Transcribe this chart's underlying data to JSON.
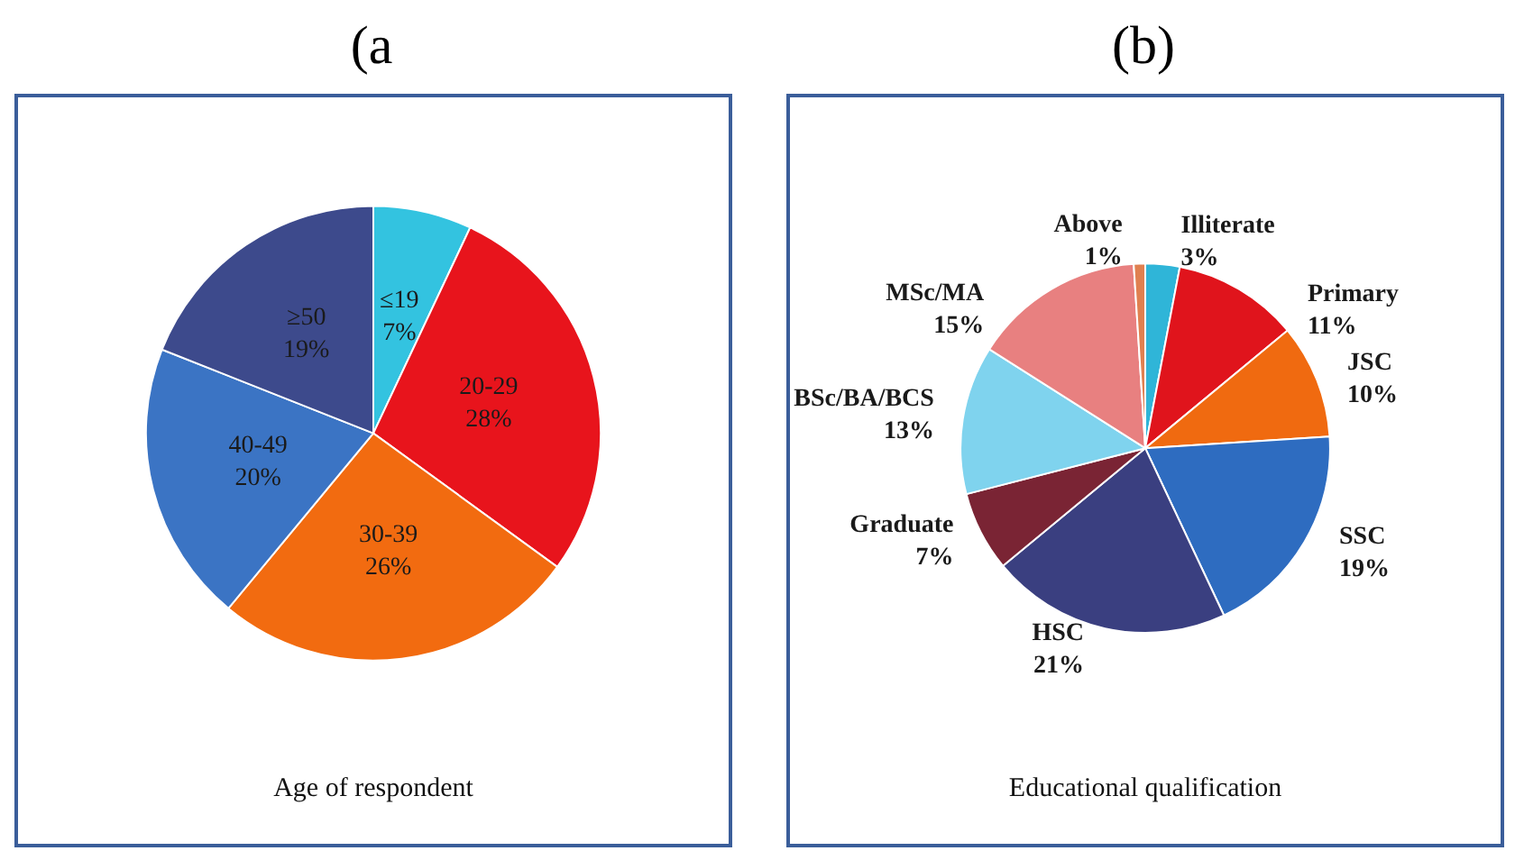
{
  "chart_data": [
    {
      "type": "pie",
      "title": "Age of respondent",
      "annotations": [
        "(a"
      ],
      "categories": [
        "≤19",
        "20-29",
        "30-39",
        "40-49",
        "≥50"
      ],
      "values": [
        7,
        28,
        26,
        20,
        19
      ],
      "value_labels": [
        "7%",
        "28%",
        "26%",
        "20%",
        "19%"
      ],
      "colors": [
        "#33c3e0",
        "#e8141c",
        "#f26b10",
        "#3b74c4",
        "#3d4a8c"
      ],
      "legend": false
    },
    {
      "type": "pie",
      "title": "Educational qualification",
      "annotations": [
        "(b)"
      ],
      "categories": [
        "Illiterate",
        "Primary",
        "JSC",
        "SSC",
        "HSC",
        "Graduate",
        "BSc/BA/BCS",
        "MSc/MA",
        "Above"
      ],
      "values": [
        3,
        11,
        10,
        19,
        21,
        7,
        13,
        15,
        1
      ],
      "value_labels": [
        "3%",
        "11%",
        "10%",
        "19%",
        "21%",
        "7%",
        "13%",
        "15%",
        "1%"
      ],
      "colors": [
        "#2fb5d8",
        "#e0141c",
        "#f06a10",
        "#2e6cc0",
        "#3a3f80",
        "#7a2434",
        "#7fd3ee",
        "#e88080",
        "#e08050"
      ],
      "legend": false
    }
  ]
}
